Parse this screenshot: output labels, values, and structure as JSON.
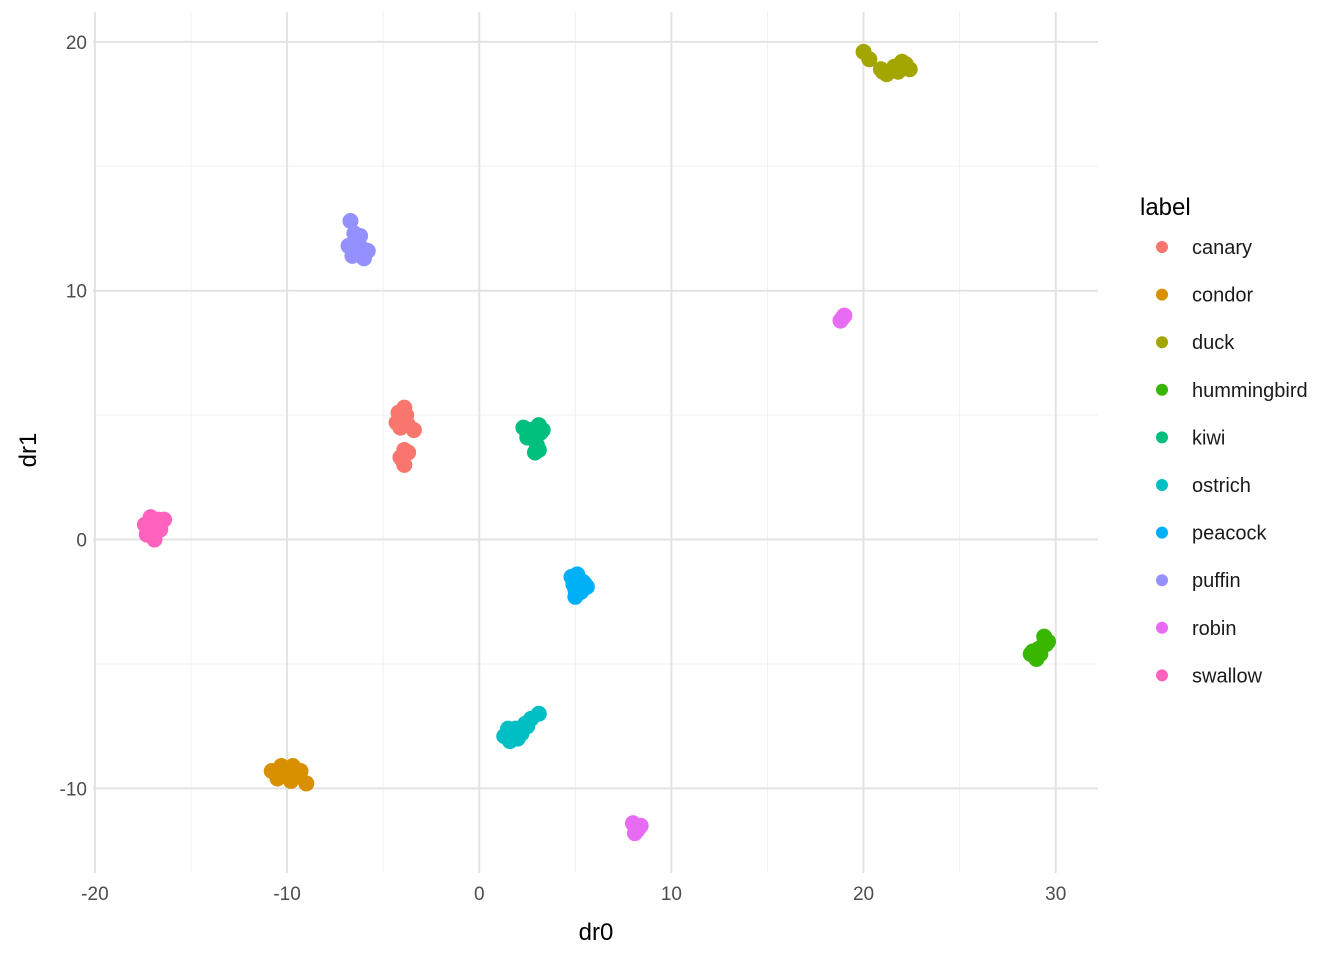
{
  "chart_data": {
    "type": "scatter",
    "xlabel": "dr0",
    "ylabel": "dr1",
    "xlim": [
      -20.1,
      32.2
    ],
    "ylim": [
      -13.4,
      21.2
    ],
    "x_ticks": [
      -20,
      -10,
      0,
      10,
      20,
      30
    ],
    "y_ticks": [
      -10,
      0,
      10,
      20
    ],
    "x_tick_labels": [
      "-20",
      "-10",
      "0",
      "10",
      "20",
      "30"
    ],
    "y_tick_labels": [
      "-10",
      "0",
      "10",
      "20"
    ],
    "grid": true,
    "legend": {
      "title": "label",
      "position": "right"
    },
    "series": [
      {
        "name": "canary",
        "color": "#F8766D",
        "points": [
          [
            -4.2,
            5.1
          ],
          [
            -3.9,
            5.3
          ],
          [
            -4.3,
            4.7
          ],
          [
            -3.7,
            4.6
          ],
          [
            -3.4,
            4.4
          ],
          [
            -4.0,
            4.9
          ],
          [
            -3.8,
            5.0
          ],
          [
            -4.1,
            4.5
          ],
          [
            -3.9,
            3.6
          ],
          [
            -4.0,
            3.2
          ],
          [
            -3.9,
            3.0
          ],
          [
            -4.1,
            3.3
          ],
          [
            -3.7,
            3.5
          ]
        ]
      },
      {
        "name": "condor",
        "color": "#D89000",
        "points": [
          [
            -10.3,
            -9.1
          ],
          [
            -10.8,
            -9.3
          ],
          [
            -10.0,
            -9.5
          ],
          [
            -9.6,
            -9.4
          ],
          [
            -9.8,
            -9.7
          ],
          [
            -10.5,
            -9.6
          ],
          [
            -9.3,
            -9.3
          ],
          [
            -9.0,
            -9.8
          ],
          [
            -10.1,
            -9.2
          ],
          [
            -9.7,
            -9.1
          ]
        ]
      },
      {
        "name": "duck",
        "color": "#A3A500",
        "points": [
          [
            20.0,
            19.6
          ],
          [
            20.3,
            19.3
          ],
          [
            20.9,
            18.9
          ],
          [
            21.2,
            18.7
          ],
          [
            21.6,
            19.0
          ],
          [
            22.0,
            19.2
          ],
          [
            22.4,
            18.9
          ],
          [
            21.8,
            18.8
          ],
          [
            22.2,
            19.1
          ],
          [
            21.0,
            18.8
          ]
        ]
      },
      {
        "name": "hummingbird",
        "color": "#39B600",
        "points": [
          [
            28.8,
            -4.5
          ],
          [
            29.0,
            -4.8
          ],
          [
            29.3,
            -4.3
          ],
          [
            29.6,
            -4.1
          ],
          [
            29.4,
            -3.9
          ],
          [
            29.1,
            -4.4
          ],
          [
            28.7,
            -4.6
          ],
          [
            29.5,
            -4.2
          ],
          [
            29.2,
            -4.6
          ]
        ]
      },
      {
        "name": "kiwi",
        "color": "#00BF7D",
        "points": [
          [
            2.3,
            4.5
          ],
          [
            2.7,
            4.4
          ],
          [
            3.1,
            4.6
          ],
          [
            3.3,
            4.4
          ],
          [
            2.5,
            4.1
          ],
          [
            2.9,
            4.0
          ],
          [
            3.0,
            3.8
          ],
          [
            2.9,
            3.5
          ],
          [
            3.1,
            3.6
          ],
          [
            2.6,
            4.2
          ],
          [
            3.2,
            4.3
          ]
        ]
      },
      {
        "name": "ostrich",
        "color": "#00BFC4",
        "points": [
          [
            1.3,
            -7.9
          ],
          [
            1.6,
            -8.1
          ],
          [
            1.9,
            -7.6
          ],
          [
            2.2,
            -7.8
          ],
          [
            2.4,
            -7.4
          ],
          [
            2.7,
            -7.2
          ],
          [
            3.1,
            -7.0
          ],
          [
            1.5,
            -7.6
          ],
          [
            2.0,
            -8.0
          ],
          [
            2.5,
            -7.5
          ]
        ]
      },
      {
        "name": "peacock",
        "color": "#00B0F6",
        "points": [
          [
            4.8,
            -1.5
          ],
          [
            5.1,
            -1.4
          ],
          [
            5.4,
            -1.7
          ],
          [
            5.6,
            -1.9
          ],
          [
            5.0,
            -2.0
          ],
          [
            4.9,
            -1.8
          ],
          [
            5.3,
            -2.1
          ],
          [
            5.0,
            -2.3
          ],
          [
            5.2,
            -1.6
          ],
          [
            5.5,
            -1.8
          ]
        ]
      },
      {
        "name": "puffin",
        "color": "#9590FF",
        "points": [
          [
            -6.7,
            12.8
          ],
          [
            -6.5,
            12.3
          ],
          [
            -6.8,
            11.8
          ],
          [
            -6.3,
            11.5
          ],
          [
            -6.1,
            11.7
          ],
          [
            -5.8,
            11.6
          ],
          [
            -6.4,
            12.0
          ],
          [
            -6.0,
            11.3
          ],
          [
            -6.6,
            11.4
          ],
          [
            -6.2,
            12.2
          ]
        ]
      },
      {
        "name": "robin",
        "color": "#E76BF3",
        "points": [
          [
            18.8,
            8.8
          ],
          [
            19.0,
            9.0
          ],
          [
            18.9,
            8.9
          ],
          [
            8.0,
            -11.4
          ],
          [
            8.3,
            -11.6
          ],
          [
            8.1,
            -11.8
          ],
          [
            8.4,
            -11.5
          ],
          [
            8.2,
            -11.7
          ]
        ]
      },
      {
        "name": "swallow",
        "color": "#FF62BC",
        "points": [
          [
            -17.3,
            0.2
          ],
          [
            -17.0,
            0.5
          ],
          [
            -16.7,
            0.8
          ],
          [
            -16.4,
            0.8
          ],
          [
            -17.4,
            0.6
          ],
          [
            -17.1,
            0.9
          ],
          [
            -16.9,
            0.0
          ],
          [
            -17.2,
            0.3
          ],
          [
            -16.6,
            0.4
          ],
          [
            -16.8,
            0.7
          ]
        ]
      }
    ]
  }
}
